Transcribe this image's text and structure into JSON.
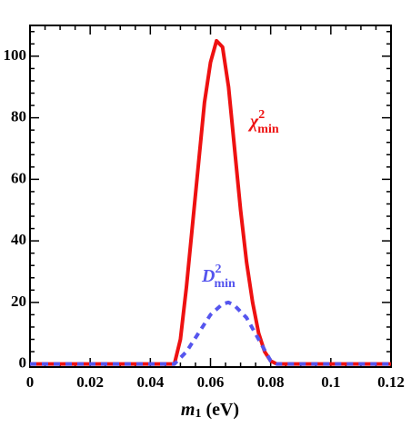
{
  "chart_data": {
    "type": "line",
    "x_label": {
      "text": "m",
      "sub": "1",
      "unit": "(eV)"
    },
    "xlim": [
      0,
      0.12
    ],
    "xticks": [
      0,
      0.02,
      0.04,
      0.06,
      0.08,
      0.1,
      0.12
    ],
    "xminorticks": [
      0.005,
      0.01,
      0.015,
      0.025,
      0.03,
      0.035,
      0.045,
      0.05,
      0.055,
      0.065,
      0.07,
      0.075,
      0.085,
      0.09,
      0.095,
      0.105,
      0.11,
      0.115
    ],
    "ylim": [
      -1,
      110
    ],
    "yticks": [
      0,
      20,
      40,
      60,
      80,
      100
    ],
    "yminorticks": [
      4,
      8,
      12,
      16,
      24,
      28,
      32,
      36,
      44,
      48,
      52,
      56,
      64,
      68,
      72,
      76,
      84,
      88,
      92,
      96,
      104,
      108
    ],
    "series": [
      {
        "name": "χ",
        "name_sup": "2",
        "name_sub": "min",
        "color": "#ee1111",
        "dash": false,
        "x": [
          0,
          0.048,
          0.05,
          0.052,
          0.054,
          0.056,
          0.058,
          0.06,
          0.062,
          0.064,
          0.066,
          0.068,
          0.07,
          0.072,
          0.074,
          0.076,
          0.078,
          0.08,
          0.082,
          0.12
        ],
        "values": [
          0,
          0,
          8,
          25,
          45,
          65,
          85,
          98,
          105,
          103,
          90,
          70,
          50,
          33,
          20,
          10,
          4,
          1,
          0,
          0
        ]
      },
      {
        "name": "D",
        "name_sup": "2",
        "name_sub": "min",
        "color": "#5555ee",
        "dash": true,
        "x": [
          0,
          0.048,
          0.052,
          0.056,
          0.06,
          0.064,
          0.066,
          0.068,
          0.072,
          0.076,
          0.08,
          0.082,
          0.12
        ],
        "values": [
          0,
          0,
          4,
          10,
          16,
          19.5,
          20,
          19,
          15,
          8,
          1,
          0,
          0
        ]
      }
    ]
  }
}
